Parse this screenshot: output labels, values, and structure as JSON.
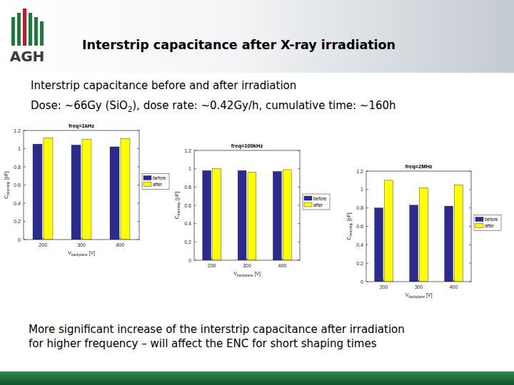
{
  "slide": {
    "logo": "AGH",
    "title": "Interstrip capacitance after X-ray irradiation",
    "subtitle": "Interstrip capacitance before and after irradiation",
    "dose": [
      "Dose: ~66Gy (SiO",
      "2",
      "), dose rate: ~0.42Gy/h, cumulative time: ~160h"
    ],
    "conclusion": [
      "More significant increase of the interstrip capacitance after irradiation",
      "for higher frequency – will affect the ENC for short shaping times"
    ]
  },
  "chart_data": [
    {
      "type": "bar",
      "title": "freq=1kHz",
      "categories": [
        200,
        300,
        400
      ],
      "xlabel": [
        "V",
        "backplane",
        " [V]"
      ],
      "ylabel": [
        "C",
        "interstrip",
        " [pF]"
      ],
      "series": [
        {
          "name": "before",
          "color": "#2b2b8f",
          "values": [
            1.05,
            1.04,
            1.02
          ]
        },
        {
          "name": "after",
          "color": "#ffff00",
          "values": [
            1.12,
            1.1,
            1.11
          ]
        }
      ],
      "ylim": [
        0,
        1.2
      ],
      "yticks": [
        0,
        0.2,
        0.4,
        0.6,
        0.8,
        1,
        1.2
      ],
      "legend": "right",
      "grid": false
    },
    {
      "type": "bar",
      "title": "freq=100kHz",
      "categories": [
        200,
        300,
        400
      ],
      "xlabel": [
        "V",
        "backplane",
        " [V]"
      ],
      "ylabel": [
        "C",
        "interstrip",
        " [pF]"
      ],
      "series": [
        {
          "name": "before",
          "color": "#2b2b8f",
          "values": [
            0.98,
            0.98,
            0.97
          ]
        },
        {
          "name": "after",
          "color": "#ffff00",
          "values": [
            1.0,
            0.96,
            0.99
          ]
        }
      ],
      "ylim": [
        0,
        1.2
      ],
      "yticks": [
        0,
        0.2,
        0.4,
        0.6,
        0.8,
        1,
        1.2
      ],
      "legend": "right",
      "grid": false
    },
    {
      "type": "bar",
      "title": "freq=2MHz",
      "categories": [
        200,
        300,
        400
      ],
      "xlabel": [
        "V",
        "backplane",
        " [V]"
      ],
      "ylabel": [
        "C",
        "interstrip",
        " [pF]"
      ],
      "series": [
        {
          "name": "before",
          "color": "#2b2b8f",
          "values": [
            0.8,
            0.83,
            0.82
          ]
        },
        {
          "name": "after",
          "color": "#ffff00",
          "values": [
            1.1,
            1.02,
            1.05
          ]
        }
      ],
      "ylim": [
        0,
        1.2
      ],
      "yticks": [
        0,
        0.2,
        0.4,
        0.6,
        0.8,
        1,
        1.2
      ],
      "legend": "right",
      "grid": false
    }
  ]
}
